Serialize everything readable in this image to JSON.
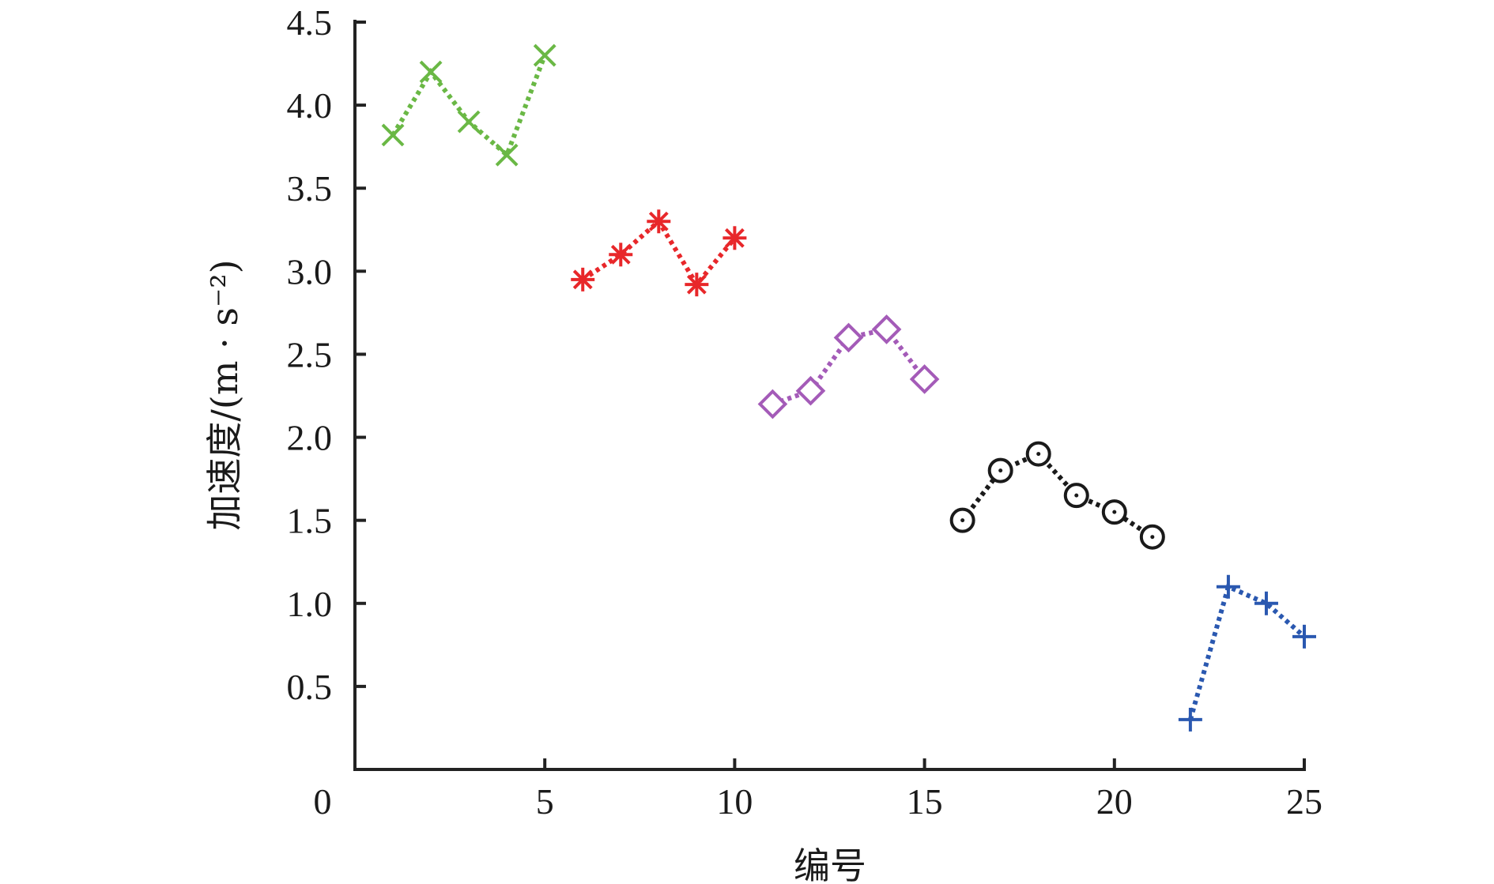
{
  "chart_data": {
    "type": "line",
    "title": "",
    "xlabel": "编号",
    "ylabel": "加速度/(m · s⁻²)",
    "xlim": [
      0,
      25
    ],
    "ylim": [
      0,
      4.5
    ],
    "x_ticks": [
      "0",
      "5",
      "10",
      "15",
      "20",
      "25"
    ],
    "y_ticks": [
      "0.5",
      "1.0",
      "1.5",
      "2.0",
      "2.5",
      "3.0",
      "3.5",
      "4.0",
      "4.5"
    ],
    "grid": false,
    "line_style": "dotted",
    "series": [
      {
        "marker": "x",
        "color": "#6ab845",
        "x": [
          1,
          2,
          3,
          4,
          5
        ],
        "y": [
          3.82,
          4.2,
          3.9,
          3.7,
          4.3
        ]
      },
      {
        "marker": "asterisk",
        "color": "#e8272a",
        "x": [
          6,
          7,
          8,
          9,
          10
        ],
        "y": [
          2.95,
          3.1,
          3.3,
          2.92,
          3.2
        ]
      },
      {
        "marker": "diamond",
        "color": "#a45bb8",
        "x": [
          11,
          12,
          13,
          14,
          15
        ],
        "y": [
          2.2,
          2.28,
          2.6,
          2.65,
          2.35
        ]
      },
      {
        "marker": "circle",
        "color": "#1a1a1a",
        "x": [
          16,
          17,
          18,
          19,
          20,
          21
        ],
        "y": [
          1.5,
          1.8,
          1.9,
          1.65,
          1.55,
          1.4
        ]
      },
      {
        "marker": "plus",
        "color": "#2a58b0",
        "x": [
          22,
          23,
          24,
          25
        ],
        "y": [
          0.3,
          1.1,
          1.0,
          0.8
        ]
      }
    ]
  }
}
